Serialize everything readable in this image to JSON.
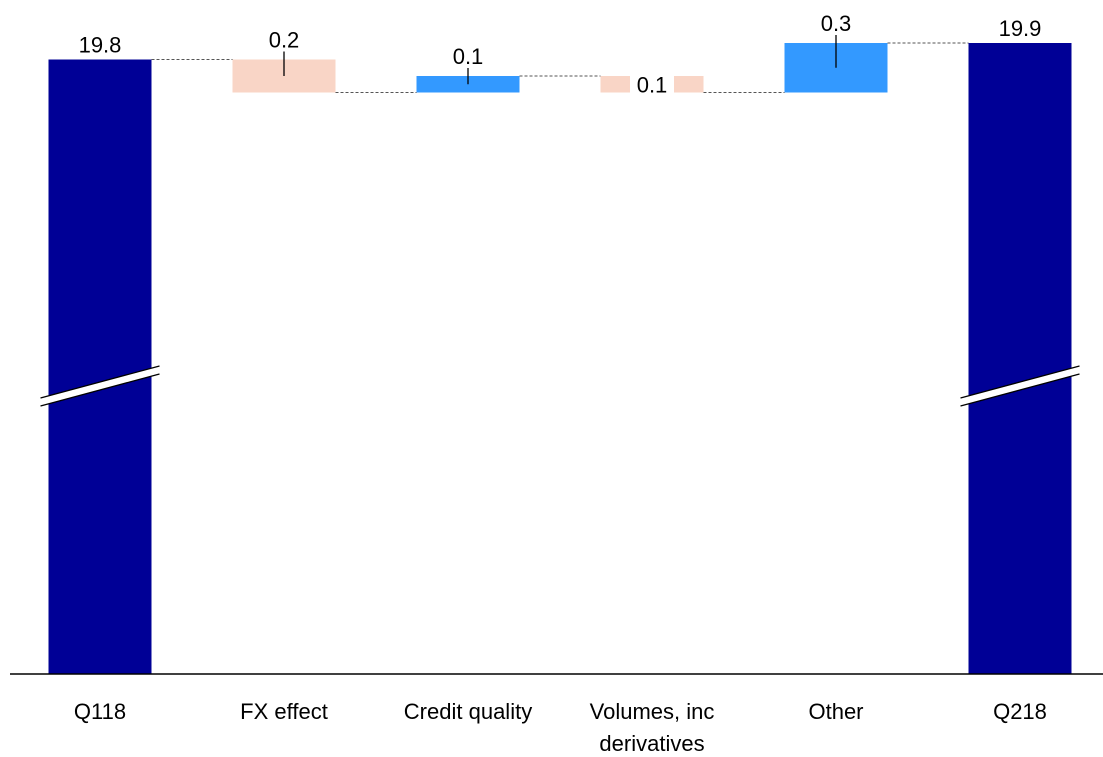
{
  "chart_data": {
    "type": "bar",
    "subtype": "waterfall",
    "categories": [
      {
        "label_lines": [
          "Q118"
        ],
        "kind": "total",
        "value": 19.8,
        "label": "19.8"
      },
      {
        "label_lines": [
          "FX effect"
        ],
        "kind": "decrease",
        "value": 0.2,
        "label": "0.2"
      },
      {
        "label_lines": [
          "Credit quality"
        ],
        "kind": "increase",
        "value": 0.1,
        "label": "0.1"
      },
      {
        "label_lines": [
          "Volumes, inc",
          "derivatives"
        ],
        "kind": "decrease",
        "value": 0.1,
        "label": "0.1"
      },
      {
        "label_lines": [
          "Other"
        ],
        "kind": "increase",
        "value": 0.3,
        "label": "0.3"
      },
      {
        "label_lines": [
          "Q218"
        ],
        "kind": "total",
        "value": 19.9,
        "label": "19.9"
      }
    ],
    "axis_break": true,
    "colors": {
      "total": "#000096",
      "increase": "#3399ff",
      "decrease": "#f9d5c6",
      "connector": "#555555",
      "axis": "#000000",
      "break_bg": "#ffffff"
    }
  }
}
